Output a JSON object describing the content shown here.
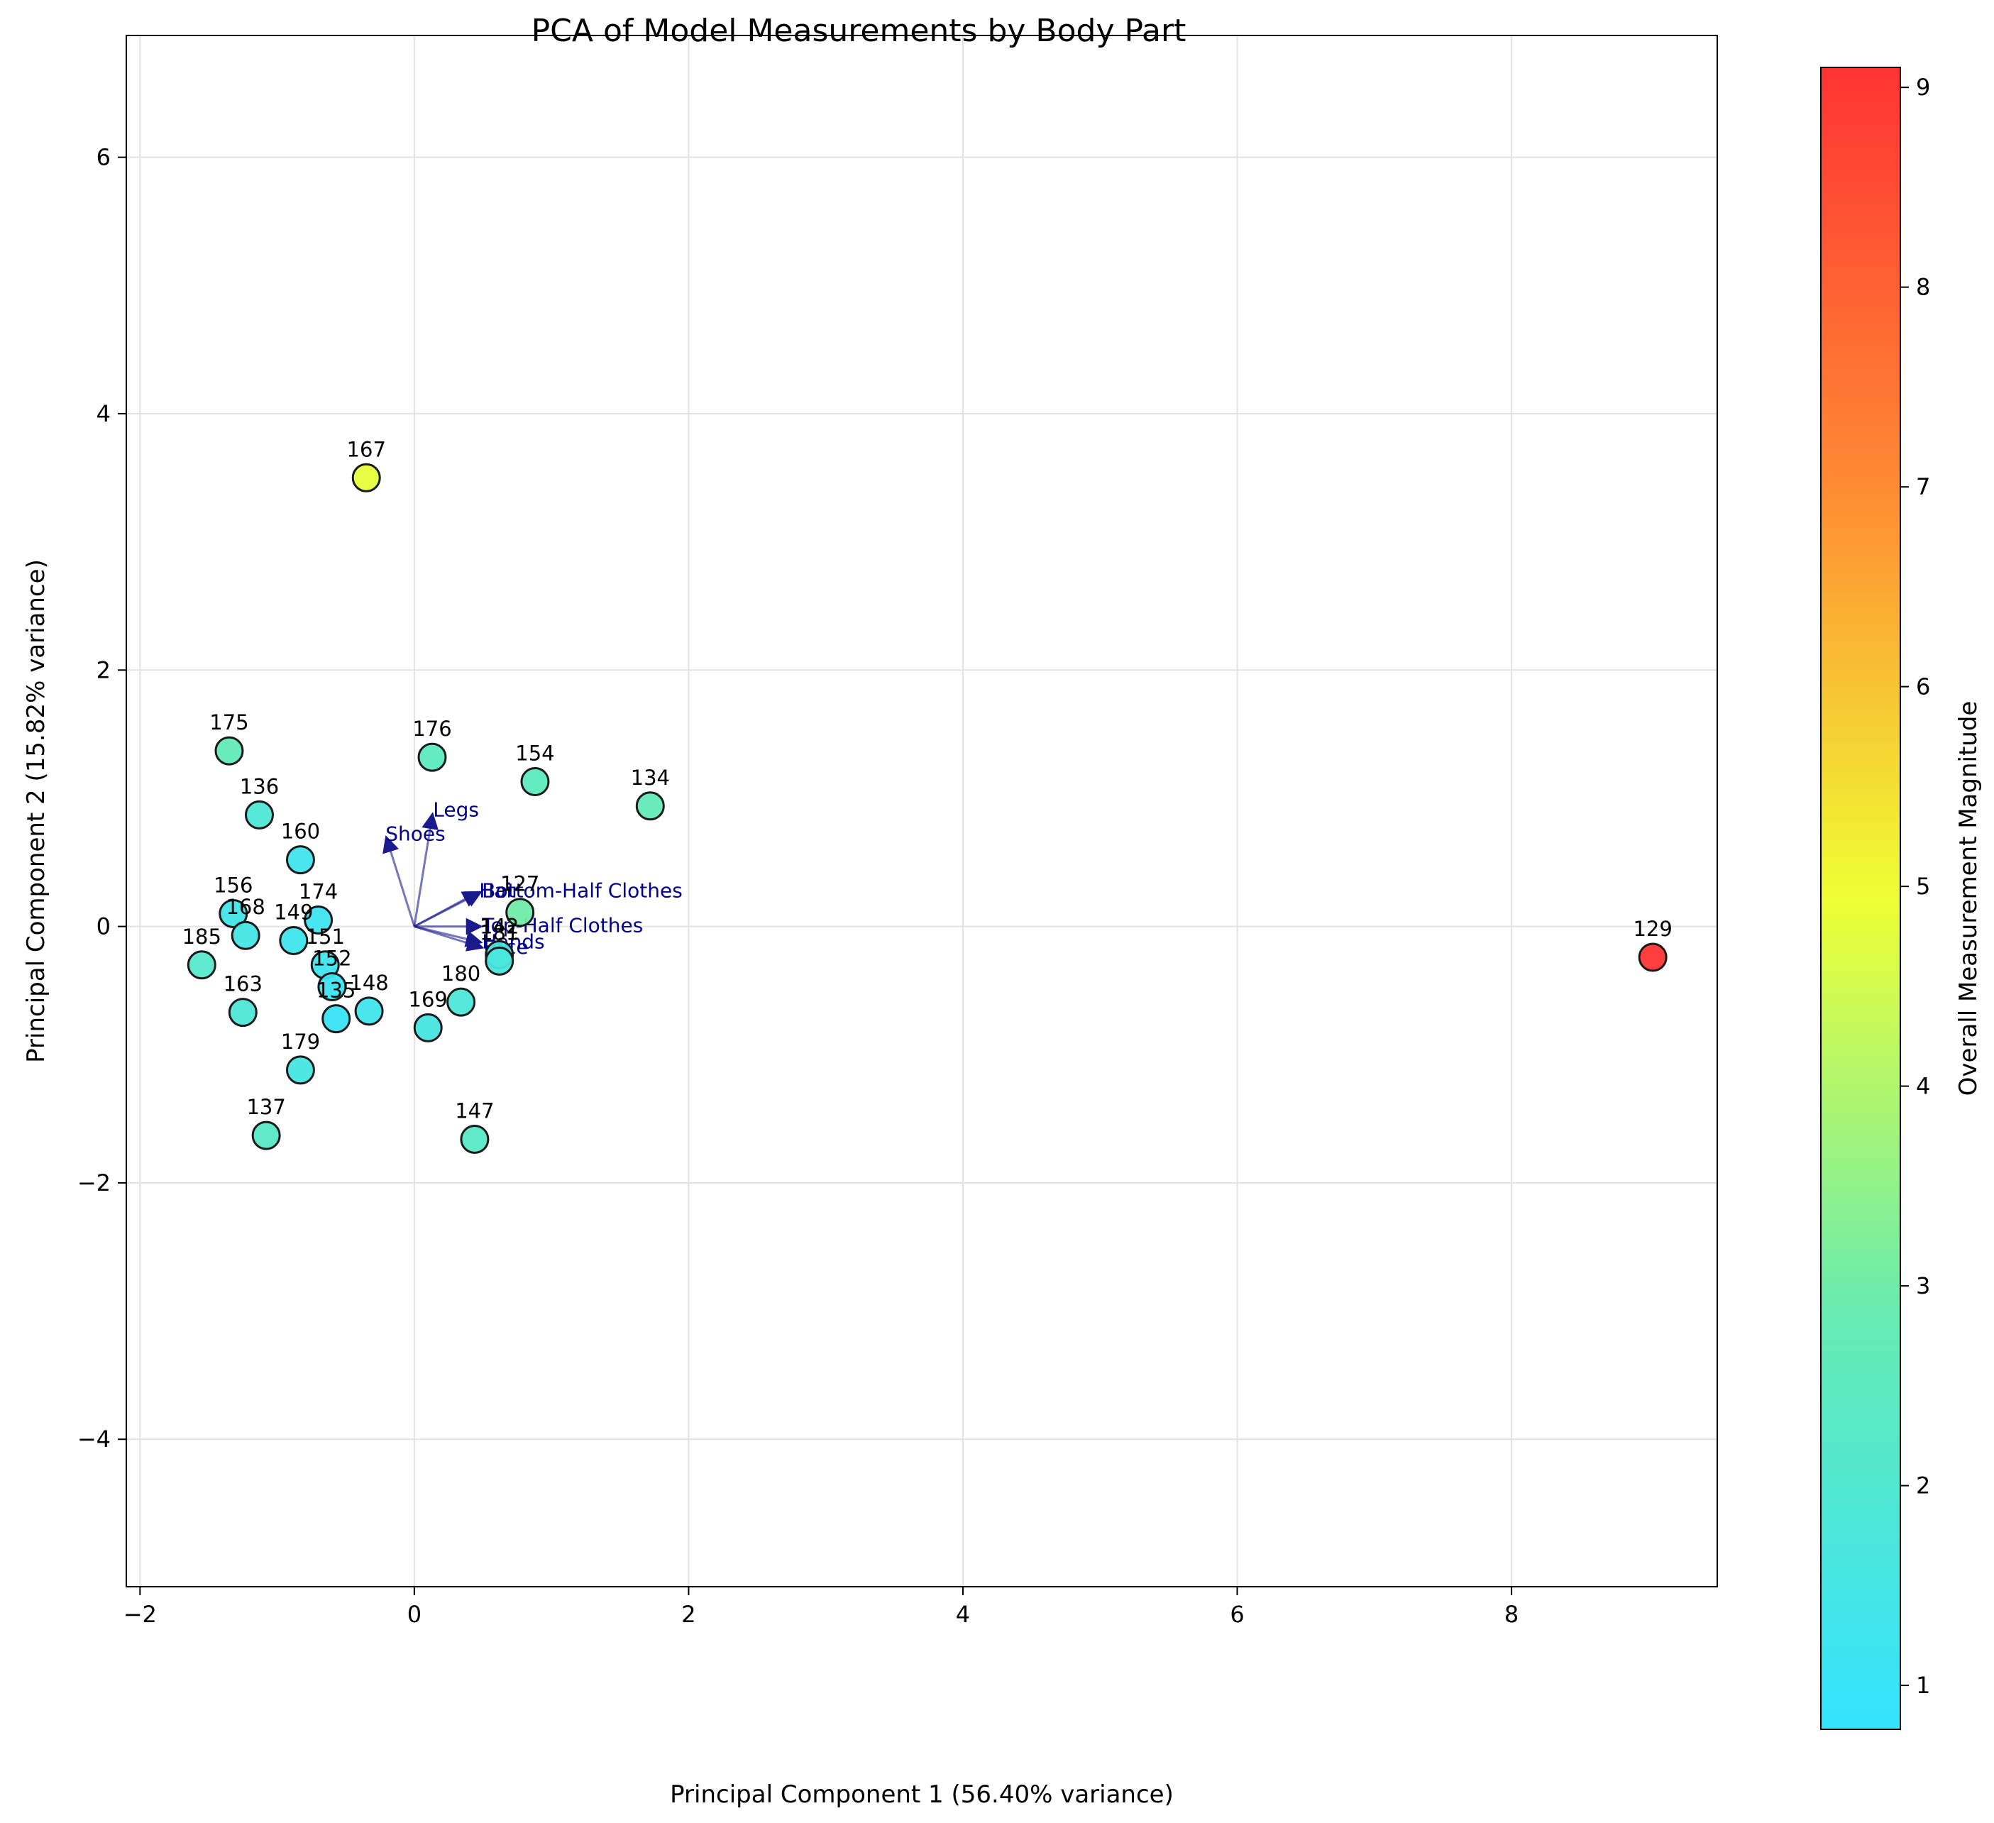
{
  "chart_data": {
    "type": "scatter",
    "title": "PCA of Model Measurements by Body Part",
    "xlabel": "Principal Component 1 (56.40% variance)",
    "ylabel": "Principal Component 2 (15.82% variance)",
    "xlim": [
      -2.1,
      9.5
    ],
    "ylim": [
      -5.15,
      6.95
    ],
    "xticks": [
      -2,
      0,
      2,
      4,
      6,
      8
    ],
    "yticks": [
      -4,
      -2,
      0,
      2,
      4,
      6
    ],
    "grid": true,
    "colorbar": {
      "label": "Overall Measurement Magnitude",
      "min": 0.78,
      "max": 9.1,
      "ticks": [
        1,
        2,
        3,
        4,
        5,
        6,
        7,
        8,
        9
      ]
    },
    "points": [
      {
        "label": "167",
        "x": -0.35,
        "y": 3.5,
        "value": 4.8
      },
      {
        "label": "175",
        "x": -1.35,
        "y": 1.37,
        "value": 2.7
      },
      {
        "label": "176",
        "x": 0.13,
        "y": 1.32,
        "value": 2.5
      },
      {
        "label": "154",
        "x": 0.88,
        "y": 1.13,
        "value": 2.5
      },
      {
        "label": "134",
        "x": 1.72,
        "y": 0.94,
        "value": 2.7
      },
      {
        "label": "136",
        "x": -1.13,
        "y": 0.87,
        "value": 1.9
      },
      {
        "label": "160",
        "x": -0.83,
        "y": 0.52,
        "value": 1.3
      },
      {
        "label": "156",
        "x": -1.32,
        "y": 0.1,
        "value": 1.4
      },
      {
        "label": "168",
        "x": -1.23,
        "y": -0.07,
        "value": 1.5
      },
      {
        "label": "174",
        "x": -0.7,
        "y": 0.05,
        "value": 1.2
      },
      {
        "label": "149",
        "x": -0.88,
        "y": -0.11,
        "value": 1.3
      },
      {
        "label": "127",
        "x": 0.77,
        "y": 0.11,
        "value": 3.0
      },
      {
        "label": "185",
        "x": -1.55,
        "y": -0.3,
        "value": 2.2
      },
      {
        "label": "151",
        "x": -0.65,
        "y": -0.3,
        "value": 1.2
      },
      {
        "label": "152",
        "x": -0.6,
        "y": -0.47,
        "value": 1.1
      },
      {
        "label": "135",
        "x": -0.57,
        "y": -0.72,
        "value": 1.0
      },
      {
        "label": "148",
        "x": -0.33,
        "y": -0.66,
        "value": 1.3
      },
      {
        "label": "163",
        "x": -1.25,
        "y": -0.67,
        "value": 1.9
      },
      {
        "label": "180",
        "x": 0.34,
        "y": -0.59,
        "value": 1.8
      },
      {
        "label": "169",
        "x": 0.1,
        "y": -0.79,
        "value": 1.6
      },
      {
        "label": "179",
        "x": -0.83,
        "y": -1.12,
        "value": 1.6
      },
      {
        "label": "137",
        "x": -1.08,
        "y": -1.63,
        "value": 2.3
      },
      {
        "label": "147",
        "x": 0.44,
        "y": -1.66,
        "value": 2.3
      },
      {
        "label": "129",
        "x": 9.03,
        "y": -0.24,
        "value": 9.05
      },
      {
        "label": "142",
        "x": 0.62,
        "y": -0.22,
        "value": 1.6
      },
      {
        "label": "181",
        "x": 0.62,
        "y": -0.27,
        "value": 1.7
      }
    ],
    "loadings": [
      {
        "name": "Shoes",
        "x": -0.2,
        "y": 0.68
      },
      {
        "name": "Legs",
        "x": 0.13,
        "y": 0.86
      },
      {
        "name": "Bottom-Half Clothes",
        "x": 0.47,
        "y": 0.26
      },
      {
        "name": "Hair",
        "x": 0.45,
        "y": 0.26
      },
      {
        "name": "Top-Half Clothes",
        "x": 0.47,
        "y": 0.0
      },
      {
        "name": "Hands",
        "x": 0.47,
        "y": -0.12
      },
      {
        "name": "Face",
        "x": 0.48,
        "y": -0.16
      }
    ]
  }
}
